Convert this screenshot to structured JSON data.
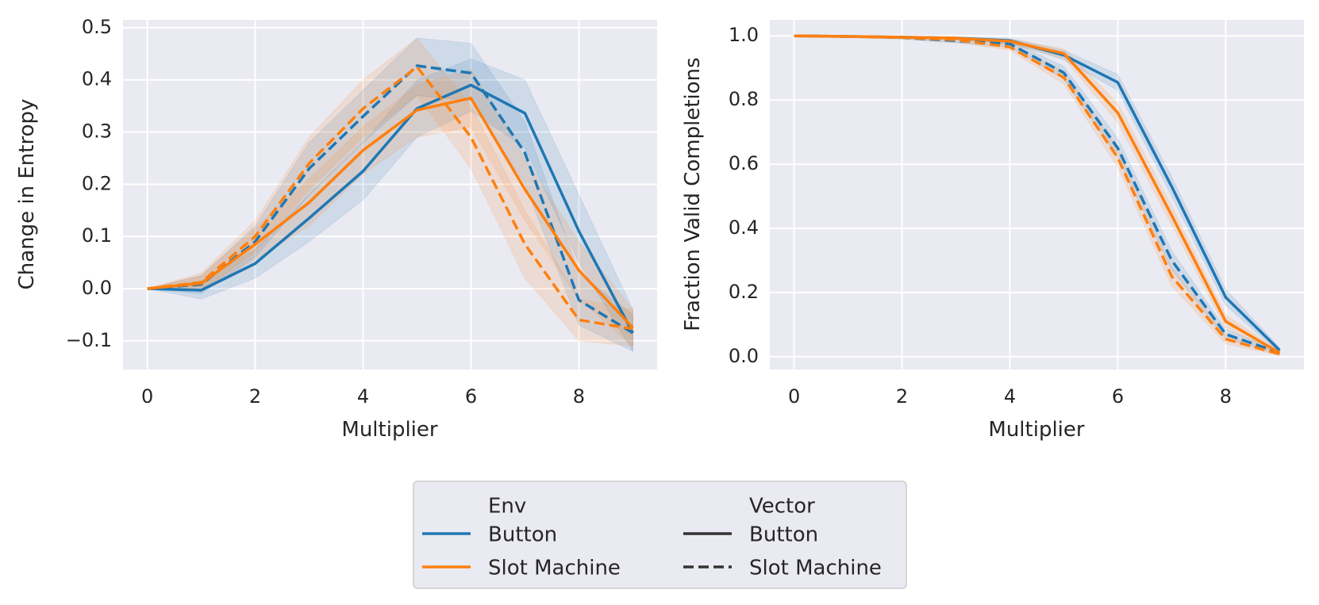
{
  "colors": {
    "button_env": "#1f77b4",
    "slot_machine_env": "#ff7f0e",
    "plot_background": "#eaeaf2",
    "grid": "#ffffff",
    "legend_vector_line": "#333333"
  },
  "chart_data": [
    {
      "type": "line",
      "xlabel": "Multiplier",
      "ylabel": "Change in Entropy",
      "xlim": [
        -0.45,
        9.45
      ],
      "ylim": [
        -0.155,
        0.515
      ],
      "xticks": [
        0,
        2,
        4,
        6,
        8
      ],
      "xtick_labels": [
        "0",
        "2",
        "4",
        "6",
        "8"
      ],
      "yticks": [
        -0.1,
        0.0,
        0.1,
        0.2,
        0.3,
        0.4,
        0.5
      ],
      "ytick_labels": [
        "−0.1",
        "0.0",
        "0.1",
        "0.2",
        "0.3",
        "0.4",
        "0.5"
      ],
      "grid": true,
      "x": [
        0,
        1,
        2,
        3,
        4,
        5,
        6,
        7,
        8,
        9
      ],
      "series": [
        {
          "env": "Button",
          "vector": "Button",
          "color": "#1f77b4",
          "dash": "solid",
          "values": [
            0.0,
            -0.003,
            0.048,
            0.135,
            0.225,
            0.345,
            0.39,
            0.336,
            0.11,
            -0.085
          ],
          "lower": [
            0.0,
            -0.02,
            0.02,
            0.09,
            0.17,
            0.29,
            0.34,
            0.27,
            0.05,
            -0.12
          ],
          "upper": [
            0.0,
            0.015,
            0.075,
            0.18,
            0.28,
            0.4,
            0.44,
            0.4,
            0.18,
            -0.04
          ]
        },
        {
          "env": "Button",
          "vector": "Slot Machine",
          "color": "#1f77b4",
          "dash": "dashed",
          "values": [
            0.0,
            0.008,
            0.09,
            0.23,
            0.33,
            0.427,
            0.413,
            0.26,
            -0.022,
            -0.085
          ],
          "lower": [
            0.0,
            -0.01,
            0.06,
            0.18,
            0.28,
            0.37,
            0.36,
            0.2,
            -0.07,
            -0.12
          ],
          "upper": [
            0.0,
            0.025,
            0.12,
            0.28,
            0.38,
            0.48,
            0.47,
            0.32,
            0.03,
            -0.05
          ]
        },
        {
          "env": "Slot Machine",
          "vector": "Button",
          "color": "#ff7f0e",
          "dash": "solid",
          "values": [
            0.0,
            0.01,
            0.085,
            0.165,
            0.265,
            0.342,
            0.365,
            0.19,
            0.035,
            -0.075
          ],
          "lower": [
            0.0,
            -0.005,
            0.055,
            0.12,
            0.22,
            0.29,
            0.31,
            0.13,
            -0.02,
            -0.11
          ],
          "upper": [
            0.0,
            0.025,
            0.115,
            0.21,
            0.31,
            0.39,
            0.42,
            0.25,
            0.09,
            -0.04
          ]
        },
        {
          "env": "Slot Machine",
          "vector": "Slot Machine",
          "color": "#ff7f0e",
          "dash": "dashed",
          "values": [
            0.0,
            0.012,
            0.1,
            0.24,
            0.345,
            0.425,
            0.29,
            0.085,
            -0.06,
            -0.077
          ],
          "lower": [
            0.0,
            -0.005,
            0.07,
            0.19,
            0.29,
            0.37,
            0.23,
            0.02,
            -0.1,
            -0.11
          ],
          "upper": [
            0.0,
            0.03,
            0.13,
            0.29,
            0.4,
            0.48,
            0.35,
            0.15,
            -0.02,
            -0.04
          ]
        }
      ]
    },
    {
      "type": "line",
      "xlabel": "Multiplier",
      "ylabel": "Fraction Valid Completions",
      "xlim": [
        -0.45,
        9.45
      ],
      "ylim": [
        -0.04,
        1.05
      ],
      "xticks": [
        0,
        2,
        4,
        6,
        8
      ],
      "xtick_labels": [
        "0",
        "2",
        "4",
        "6",
        "8"
      ],
      "yticks": [
        0.0,
        0.2,
        0.4,
        0.6,
        0.8,
        1.0
      ],
      "ytick_labels": [
        "0.0",
        "0.2",
        "0.4",
        "0.6",
        "0.8",
        "1.0"
      ],
      "grid": true,
      "x": [
        0,
        1,
        2,
        3,
        4,
        5,
        6,
        7,
        8,
        9
      ],
      "series": [
        {
          "env": "Button",
          "vector": "Button",
          "color": "#1f77b4",
          "dash": "solid",
          "values": [
            1.0,
            0.998,
            0.996,
            0.993,
            0.985,
            0.94,
            0.855,
            0.53,
            0.185,
            0.02
          ],
          "lower": [
            1.0,
            0.996,
            0.993,
            0.988,
            0.978,
            0.925,
            0.83,
            0.5,
            0.16,
            0.012
          ],
          "upper": [
            1.0,
            1.0,
            0.999,
            0.997,
            0.992,
            0.955,
            0.88,
            0.56,
            0.21,
            0.028
          ]
        },
        {
          "env": "Button",
          "vector": "Slot Machine",
          "color": "#1f77b4",
          "dash": "dashed",
          "values": [
            1.0,
            0.998,
            0.995,
            0.985,
            0.975,
            0.885,
            0.65,
            0.3,
            0.07,
            0.012
          ],
          "lower": [
            1.0,
            0.995,
            0.99,
            0.978,
            0.965,
            0.865,
            0.62,
            0.27,
            0.055,
            0.006
          ],
          "upper": [
            1.0,
            1.0,
            0.999,
            0.992,
            0.985,
            0.905,
            0.68,
            0.33,
            0.085,
            0.018
          ]
        },
        {
          "env": "Slot Machine",
          "vector": "Button",
          "color": "#ff7f0e",
          "dash": "solid",
          "values": [
            1.0,
            0.998,
            0.996,
            0.993,
            0.983,
            0.945,
            0.76,
            0.44,
            0.11,
            0.012
          ],
          "lower": [
            1.0,
            0.996,
            0.993,
            0.988,
            0.975,
            0.93,
            0.73,
            0.41,
            0.09,
            0.006
          ],
          "upper": [
            1.0,
            1.0,
            0.999,
            0.997,
            0.99,
            0.96,
            0.79,
            0.47,
            0.13,
            0.018
          ]
        },
        {
          "env": "Slot Machine",
          "vector": "Slot Machine",
          "color": "#ff7f0e",
          "dash": "dashed",
          "values": [
            1.0,
            0.998,
            0.995,
            0.988,
            0.965,
            0.87,
            0.62,
            0.25,
            0.055,
            0.008
          ],
          "lower": [
            1.0,
            0.995,
            0.99,
            0.98,
            0.955,
            0.85,
            0.59,
            0.22,
            0.04,
            0.004
          ],
          "upper": [
            1.0,
            1.0,
            0.999,
            0.994,
            0.975,
            0.89,
            0.65,
            0.28,
            0.07,
            0.014
          ]
        }
      ]
    }
  ],
  "legend": {
    "placement": "bottom-center",
    "env_title": "Env",
    "vector_title": "Vector",
    "env_items": [
      {
        "label": "Button",
        "color": "#1f77b4"
      },
      {
        "label": "Slot Machine",
        "color": "#ff7f0e"
      }
    ],
    "vector_items": [
      {
        "label": "Button",
        "dash": "solid"
      },
      {
        "label": "Slot Machine",
        "dash": "dashed"
      }
    ]
  }
}
